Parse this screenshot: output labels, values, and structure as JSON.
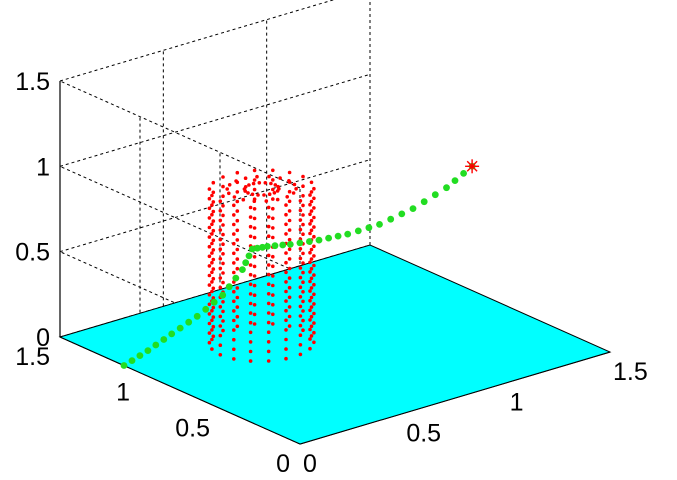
{
  "chart_data": {
    "type": "scatter",
    "view": "3d",
    "title": "",
    "xlabel": "",
    "ylabel": "",
    "zlabel": "",
    "xlim": [
      0,
      1.5
    ],
    "ylim": [
      0,
      1.5
    ],
    "zlim": [
      0,
      1.5
    ],
    "grid": true,
    "x_ticks": [
      "0",
      "0.5",
      "1",
      "1.5"
    ],
    "y_ticks": [
      "0",
      "0.5",
      "1",
      "1.5"
    ],
    "z_ticks": [
      "0",
      "0.5",
      "1",
      "1.5"
    ],
    "floor": {
      "z": 0,
      "color": "#00ffff"
    },
    "obstacle": {
      "shape": "cylinder",
      "center": [
        0.55,
        0.95
      ],
      "radius": 0.2,
      "z_range": [
        0,
        0.9
      ],
      "color": "#ff0000"
    },
    "path": {
      "color": "#22dd22",
      "points": [
        [
          0.0,
          1.1,
          0.0
        ],
        [
          0.1,
          1.08,
          0.06
        ],
        [
          0.2,
          1.06,
          0.13
        ],
        [
          0.3,
          1.03,
          0.21
        ],
        [
          0.4,
          1.0,
          0.31
        ],
        [
          0.48,
          0.98,
          0.44
        ],
        [
          0.52,
          0.97,
          0.55
        ],
        [
          0.57,
          0.94,
          0.56
        ],
        [
          0.65,
          0.9,
          0.56
        ],
        [
          0.75,
          0.85,
          0.57
        ],
        [
          0.85,
          0.8,
          0.59
        ],
        [
          0.95,
          0.73,
          0.64
        ],
        [
          1.05,
          0.65,
          0.73
        ],
        [
          1.15,
          0.57,
          0.85
        ],
        [
          1.22,
          0.5,
          0.98
        ]
      ]
    },
    "goal": {
      "point": [
        1.22,
        0.5,
        0.98
      ],
      "color": "#ff0000",
      "marker": "asterisk"
    }
  }
}
